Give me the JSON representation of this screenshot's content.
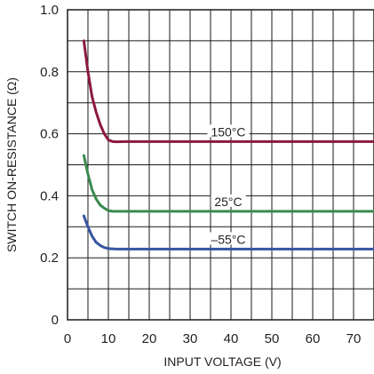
{
  "chart_data": {
    "type": "line",
    "title": "",
    "xlabel": "INPUT VOLTAGE (V)",
    "ylabel": "SWITCH ON-RESISTANCE (Ω)",
    "xlim": [
      0,
      75
    ],
    "ylim": [
      0,
      1.0
    ],
    "x_ticks": [
      0,
      10,
      20,
      30,
      40,
      50,
      60,
      70
    ],
    "y_ticks": [
      0,
      0.2,
      0.4,
      0.6,
      0.8,
      1.0
    ],
    "y_tick_labels": [
      "0",
      "0.2",
      "0.4",
      "0.6",
      "0.8",
      "1.0"
    ],
    "grid": true,
    "series": [
      {
        "name": "150°C",
        "color": "#8b1a3c",
        "x": [
          4,
          5,
          6,
          7,
          8,
          9,
          10,
          11,
          12,
          14,
          20,
          40,
          75
        ],
        "y": [
          0.9,
          0.8,
          0.72,
          0.67,
          0.63,
          0.6,
          0.58,
          0.575,
          0.574,
          0.575,
          0.575,
          0.575,
          0.575
        ]
      },
      {
        "name": "25°C",
        "color": "#3b8a4e",
        "x": [
          4,
          5,
          6,
          7,
          8,
          9,
          10,
          11,
          12,
          20,
          40,
          75
        ],
        "y": [
          0.53,
          0.47,
          0.42,
          0.39,
          0.37,
          0.36,
          0.352,
          0.35,
          0.35,
          0.35,
          0.35,
          0.35
        ]
      },
      {
        "name": "–55°C",
        "color": "#3755a0",
        "x": [
          4,
          5,
          6,
          7,
          8,
          9,
          10,
          11,
          12,
          20,
          40,
          75
        ],
        "y": [
          0.335,
          0.3,
          0.27,
          0.25,
          0.24,
          0.233,
          0.23,
          0.229,
          0.228,
          0.228,
          0.228,
          0.228
        ]
      }
    ],
    "annotations": [
      {
        "text": "150°C",
        "series": 0,
        "x": 35
      },
      {
        "text": "25°C",
        "series": 1,
        "x": 35
      },
      {
        "text": "–55°C",
        "series": 2,
        "x": 35
      }
    ]
  }
}
